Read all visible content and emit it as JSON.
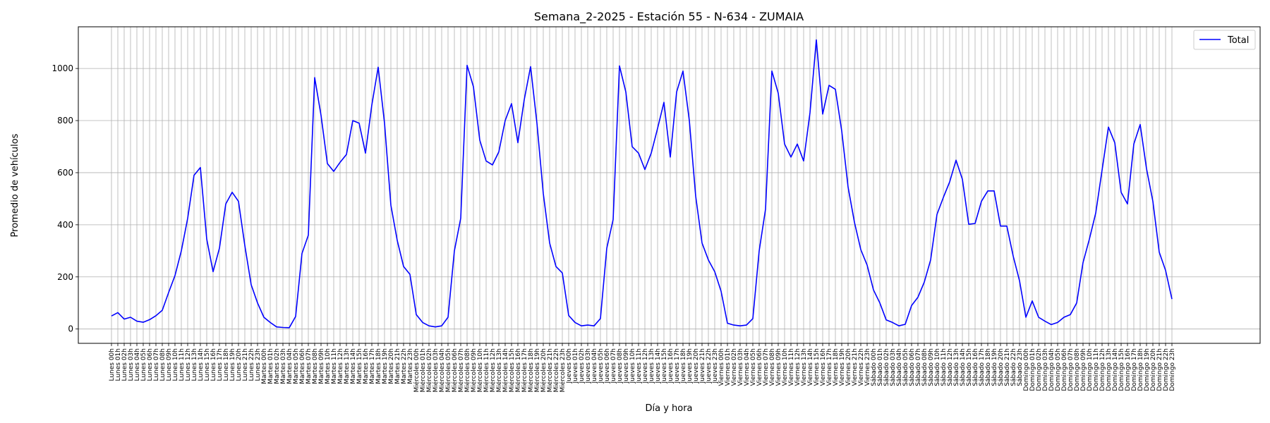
{
  "chart_data": {
    "type": "line",
    "title": "Semana_2-2025 - Estación 55 - N-634  - ZUMAIA",
    "xlabel": "Día y hora",
    "ylabel": "Promedio de vehículos",
    "ylim": [
      -55,
      1160
    ],
    "yticks": [
      0,
      200,
      400,
      600,
      800,
      1000
    ],
    "grid": true,
    "legend": {
      "position": "top-right"
    },
    "categories": [
      "Lunes 00h",
      "Lunes 01h",
      "Lunes 02h",
      "Lunes 03h",
      "Lunes 04h",
      "Lunes 05h",
      "Lunes 06h",
      "Lunes 07h",
      "Lunes 08h",
      "Lunes 09h",
      "Lunes 10h",
      "Lunes 11h",
      "Lunes 12h",
      "Lunes 13h",
      "Lunes 14h",
      "Lunes 15h",
      "Lunes 16h",
      "Lunes 17h",
      "Lunes 18h",
      "Lunes 19h",
      "Lunes 20h",
      "Lunes 21h",
      "Lunes 22h",
      "Lunes 23h",
      "Martes 00h",
      "Martes 01h",
      "Martes 02h",
      "Martes 03h",
      "Martes 04h",
      "Martes 05h",
      "Martes 06h",
      "Martes 07h",
      "Martes 08h",
      "Martes 09h",
      "Martes 10h",
      "Martes 11h",
      "Martes 12h",
      "Martes 13h",
      "Martes 14h",
      "Martes 15h",
      "Martes 16h",
      "Martes 17h",
      "Martes 18h",
      "Martes 19h",
      "Martes 20h",
      "Martes 21h",
      "Martes 22h",
      "Martes 23h",
      "Miércoles 00h",
      "Miércoles 01h",
      "Miércoles 02h",
      "Miércoles 03h",
      "Miércoles 04h",
      "Miércoles 05h",
      "Miércoles 06h",
      "Miércoles 07h",
      "Miércoles 08h",
      "Miércoles 09h",
      "Miércoles 10h",
      "Miércoles 11h",
      "Miércoles 12h",
      "Miércoles 13h",
      "Miércoles 14h",
      "Miércoles 15h",
      "Miércoles 16h",
      "Miércoles 17h",
      "Miércoles 18h",
      "Miércoles 19h",
      "Miércoles 20h",
      "Miércoles 21h",
      "Miércoles 22h",
      "Miércoles 23h",
      "Jueves 00h",
      "Jueves 01h",
      "Jueves 02h",
      "Jueves 03h",
      "Jueves 04h",
      "Jueves 05h",
      "Jueves 06h",
      "Jueves 07h",
      "Jueves 08h",
      "Jueves 09h",
      "Jueves 10h",
      "Jueves 11h",
      "Jueves 12h",
      "Jueves 13h",
      "Jueves 14h",
      "Jueves 15h",
      "Jueves 16h",
      "Jueves 17h",
      "Jueves 18h",
      "Jueves 19h",
      "Jueves 20h",
      "Jueves 21h",
      "Jueves 22h",
      "Jueves 23h",
      "Viernes 00h",
      "Viernes 01h",
      "Viernes 02h",
      "Viernes 03h",
      "Viernes 04h",
      "Viernes 05h",
      "Viernes 06h",
      "Viernes 07h",
      "Viernes 08h",
      "Viernes 09h",
      "Viernes 10h",
      "Viernes 11h",
      "Viernes 12h",
      "Viernes 13h",
      "Viernes 14h",
      "Viernes 15h",
      "Viernes 16h",
      "Viernes 17h",
      "Viernes 18h",
      "Viernes 19h",
      "Viernes 20h",
      "Viernes 21h",
      "Viernes 22h",
      "Viernes 23h",
      "Sábado 00h",
      "Sábado 01h",
      "Sábado 02h",
      "Sábado 03h",
      "Sábado 04h",
      "Sábado 05h",
      "Sábado 06h",
      "Sábado 07h",
      "Sábado 08h",
      "Sábado 09h",
      "Sábado 10h",
      "Sábado 11h",
      "Sábado 12h",
      "Sábado 13h",
      "Sábado 14h",
      "Sábado 15h",
      "Sábado 16h",
      "Sábado 17h",
      "Sábado 18h",
      "Sábado 19h",
      "Sábado 20h",
      "Sábado 21h",
      "Sábado 22h",
      "Sábado 23h",
      "Domingo 00h",
      "Domingo 01h",
      "Domingo 02h",
      "Domingo 03h",
      "Domingo 04h",
      "Domingo 05h",
      "Domingo 06h",
      "Domingo 07h",
      "Domingo 08h",
      "Domingo 09h",
      "Domingo 10h",
      "Domingo 11h",
      "Domingo 12h",
      "Domingo 13h",
      "Domingo 14h",
      "Domingo 15h",
      "Domingo 16h",
      "Domingo 17h",
      "Domingo 18h",
      "Domingo 19h",
      "Domingo 20h",
      "Domingo 21h",
      "Domingo 22h",
      "Domingo 23h"
    ],
    "series": [
      {
        "name": "Total",
        "color": "#0000ff",
        "values": [
          50,
          63,
          38,
          45,
          30,
          26,
          36,
          51,
          72,
          140,
          205,
          300,
          425,
          590,
          620,
          345,
          220,
          310,
          480,
          525,
          490,
          320,
          170,
          100,
          45,
          25,
          8,
          6,
          5,
          48,
          290,
          360,
          965,
          820,
          635,
          605,
          640,
          670,
          800,
          790,
          675,
          860,
          1005,
          790,
          475,
          340,
          240,
          210,
          55,
          25,
          12,
          8,
          12,
          45,
          300,
          425,
          1012,
          930,
          725,
          645,
          630,
          680,
          800,
          865,
          715,
          880,
          1007,
          790,
          520,
          330,
          240,
          215,
          52,
          25,
          12,
          15,
          12,
          40,
          310,
          420,
          1010,
          910,
          700,
          675,
          612,
          675,
          770,
          870,
          660,
          910,
          990,
          800,
          510,
          330,
          265,
          220,
          145,
          22,
          15,
          12,
          15,
          40,
          300,
          460,
          990,
          905,
          710,
          660,
          710,
          645,
          830,
          1110,
          825,
          935,
          920,
          760,
          545,
          410,
          305,
          245,
          150,
          100,
          35,
          25,
          12,
          18,
          90,
          122,
          180,
          265,
          440,
          505,
          565,
          648,
          575,
          402,
          405,
          490,
          530,
          530,
          395,
          395,
          280,
          185,
          45,
          108,
          45,
          30,
          17,
          25,
          45,
          55,
          100,
          255,
          345,
          445,
          610,
          775,
          715,
          525,
          480,
          710,
          785,
          615,
          490,
          295,
          225,
          115
        ]
      }
    ]
  }
}
